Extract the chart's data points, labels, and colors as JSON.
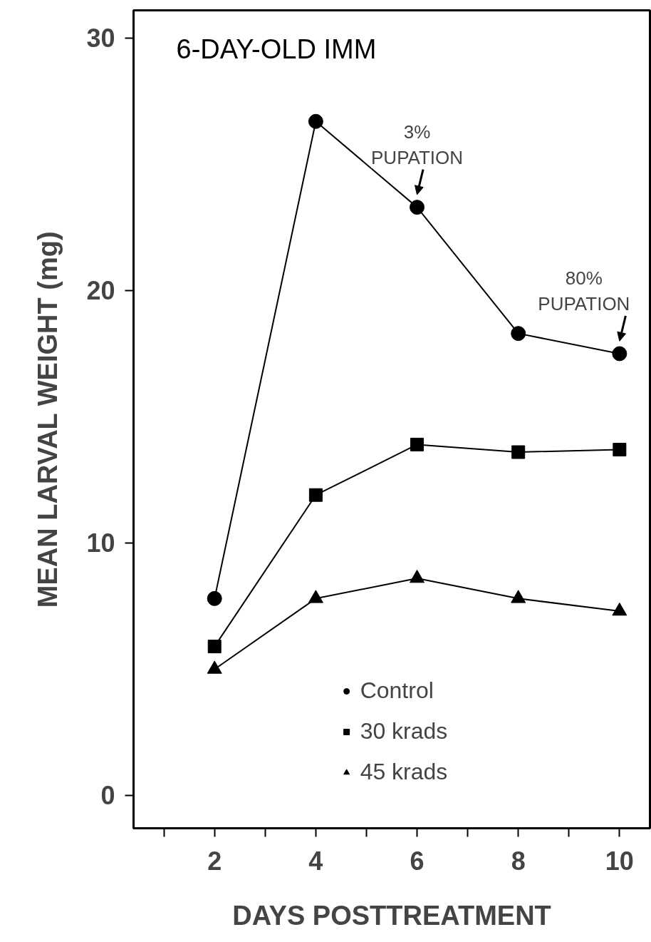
{
  "chart_data": {
    "type": "line",
    "title": "6-DAY-OLD IMM",
    "xlabel": "DAYS POSTTREATMENT",
    "ylabel": "MEAN LARVAL WEIGHT (mg)",
    "x": [
      2,
      4,
      6,
      8,
      10
    ],
    "series": [
      {
        "name": "Control",
        "color": "#000000",
        "marker": "circle",
        "values": [
          7.8,
          26.7,
          23.3,
          18.3,
          17.5
        ]
      },
      {
        "name": "30 krads",
        "color": "#000000",
        "marker": "square",
        "values": [
          5.9,
          11.9,
          13.9,
          13.6,
          13.7
        ]
      },
      {
        "name": "45 krads",
        "color": "#000000",
        "marker": "triangle",
        "values": [
          5.0,
          7.8,
          8.6,
          7.8,
          7.3
        ]
      }
    ],
    "annotations": [
      {
        "text": "3%\nPUPATION",
        "x": 6,
        "y": 23.3
      },
      {
        "text": "80%\nPUPATION",
        "x": 10,
        "y": 17.5
      }
    ],
    "xlim": [
      0.4,
      10.6
    ],
    "ylim": [
      -1.3,
      31.1
    ],
    "xticks": [
      {
        "value": 1,
        "label": null
      },
      2,
      {
        "value": 3,
        "label": null
      },
      4,
      {
        "value": 5,
        "label": null
      },
      6,
      {
        "value": 7,
        "label": null
      },
      8,
      {
        "value": 9,
        "label": null
      },
      10
    ],
    "yticks": [
      0,
      10,
      20,
      30
    ],
    "grid": false,
    "legend": "bottom",
    "line_style": "solid"
  }
}
